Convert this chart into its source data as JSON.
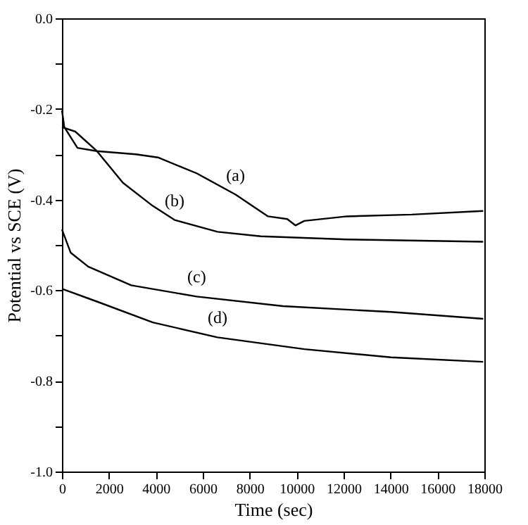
{
  "chart_data": {
    "type": "line",
    "xlabel": "Time (sec)",
    "ylabel": "Potential vs SCE (V)",
    "xlim": [
      0,
      18000
    ],
    "xticks": [
      0,
      2000,
      4000,
      6000,
      8000,
      10000,
      12000,
      14000,
      16000,
      18000
    ],
    "ylim": [
      -1.0,
      0.0
    ],
    "yticks": [
      {
        "value": -1.0,
        "label": "-1.0"
      },
      {
        "value": -0.9,
        "label": null
      },
      {
        "value": -0.8,
        "label": "-0.8"
      },
      {
        "value": -0.7,
        "label": null
      },
      {
        "value": -0.6,
        "label": "-0.6"
      },
      {
        "value": -0.5,
        "label": null
      },
      {
        "value": -0.4,
        "label": "-0.4"
      },
      {
        "value": -0.3,
        "label": null
      },
      {
        "value": -0.2,
        "label": "-0.2"
      },
      {
        "value": -0.1,
        "label": null
      },
      {
        "value": 0.0,
        "label": "0.0"
      }
    ],
    "grid": false,
    "legend": false,
    "marker": "none",
    "line_style": "solid",
    "series": [
      {
        "name": "(a)",
        "color": "#000000",
        "x": [
          0,
          100,
          660,
          1490,
          3150,
          4090,
          5740,
          7400,
          8780,
          9600,
          9950,
          10330,
          12150,
          14910,
          17950
        ],
        "values": [
          -0.203,
          -0.24,
          -0.286,
          -0.293,
          -0.3,
          -0.307,
          -0.342,
          -0.389,
          -0.437,
          -0.443,
          -0.457,
          -0.447,
          -0.437,
          -0.433,
          -0.425
        ]
      },
      {
        "name": "(b)",
        "color": "#000000",
        "x": [
          0,
          570,
          1490,
          2600,
          3870,
          4800,
          6630,
          8470,
          12150,
          17950
        ],
        "values": [
          -0.24,
          -0.25,
          -0.293,
          -0.363,
          -0.414,
          -0.445,
          -0.471,
          -0.481,
          -0.488,
          -0.493
        ]
      },
      {
        "name": "(c)",
        "color": "#000000",
        "x": [
          0,
          370,
          1120,
          2950,
          5740,
          9420,
          14020,
          17950
        ],
        "values": [
          -0.466,
          -0.517,
          -0.548,
          -0.589,
          -0.614,
          -0.635,
          -0.648,
          -0.663
        ]
      },
      {
        "name": "(d)",
        "color": "#000000",
        "x": [
          0,
          1490,
          3870,
          6630,
          10330,
          14020,
          17950
        ],
        "values": [
          -0.597,
          -0.625,
          -0.671,
          -0.704,
          -0.73,
          -0.748,
          -0.758
        ]
      }
    ]
  }
}
